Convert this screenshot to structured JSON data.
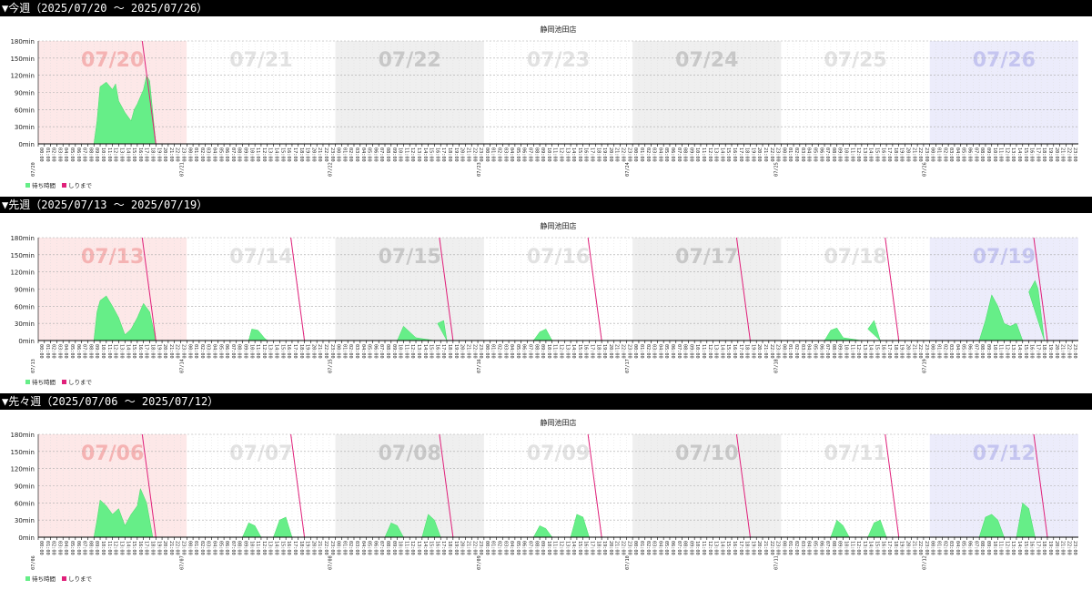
{
  "weeks": [
    {
      "header": "▼今週（2025/07/20 ～ 2025/07/26）"
    },
    {
      "header": "▼先週（2025/07/13 ～ 2025/07/19）"
    },
    {
      "header": "▼先々週（2025/07/06 ～ 2025/07/12）"
    }
  ],
  "chart_data": [
    {
      "type": "area",
      "title": "静岡池田店",
      "y_ticks": [
        "0min",
        "30min",
        "60min",
        "90min",
        "120min",
        "150min",
        "180min"
      ],
      "ylim": [
        0,
        180
      ],
      "grid": true,
      "legend_position": "bottom-left",
      "legend": [
        "待ち時間",
        "しりまで"
      ],
      "day_labels": [
        "07/20",
        "07/21",
        "07/22",
        "07/23",
        "07/24",
        "07/25",
        "07/26"
      ],
      "x_date_labels": [
        "07/20",
        "07/21",
        "07/22",
        "07/23",
        "07/24",
        "07/25",
        "07/26"
      ],
      "series": [
        {
          "name": "待ち時間",
          "color": "#66ee88",
          "points": [
            [
              0,
              9,
              0
            ],
            [
              0,
              9.5,
              40
            ],
            [
              0,
              10,
              100
            ],
            [
              0,
              11,
              108
            ],
            [
              0,
              12,
              95
            ],
            [
              0,
              12.5,
              105
            ],
            [
              0,
              13,
              75
            ],
            [
              0,
              14,
              55
            ],
            [
              0,
              15,
              40
            ],
            [
              0,
              15.5,
              60
            ],
            [
              0,
              16,
              70
            ],
            [
              0,
              17,
              95
            ],
            [
              0,
              17.5,
              120
            ],
            [
              0,
              18,
              110
            ],
            [
              0,
              19,
              0
            ]
          ]
        },
        {
          "name": "しりまで",
          "color": "#e0207a",
          "lines": [
            [
              0,
              16.8,
              180,
              19,
              0
            ]
          ]
        }
      ]
    },
    {
      "type": "area",
      "title": "静岡池田店",
      "y_ticks": [
        "0min",
        "30min",
        "60min",
        "90min",
        "120min",
        "150min",
        "180min"
      ],
      "ylim": [
        0,
        180
      ],
      "grid": true,
      "legend_position": "bottom-left",
      "legend": [
        "待ち時間",
        "しりまで"
      ],
      "day_labels": [
        "07/13",
        "07/14",
        "07/15",
        "07/16",
        "07/17",
        "07/18",
        "07/19"
      ],
      "x_date_labels": [
        "07/13",
        "07/14",
        "07/15",
        "07/16",
        "07/17",
        "07/18",
        "07/19"
      ],
      "series": [
        {
          "name": "待ち時間",
          "color": "#66ee88",
          "points": [
            [
              0,
              9,
              0
            ],
            [
              0,
              9.5,
              50
            ],
            [
              0,
              10,
              70
            ],
            [
              0,
              11,
              78
            ],
            [
              0,
              12,
              60
            ],
            [
              0,
              13,
              40
            ],
            [
              0,
              14,
              10
            ],
            [
              0,
              15,
              20
            ],
            [
              0,
              16,
              40
            ],
            [
              0,
              17,
              65
            ],
            [
              0,
              18,
              50
            ],
            [
              0,
              19,
              0
            ],
            [
              1,
              10,
              0
            ],
            [
              1,
              10.5,
              20
            ],
            [
              1,
              11.5,
              18
            ],
            [
              1,
              12.5,
              5
            ],
            [
              1,
              13,
              0
            ],
            [
              2,
              10,
              0
            ],
            [
              2,
              11,
              25
            ],
            [
              2,
              12,
              15
            ],
            [
              2,
              13,
              5
            ],
            [
              2,
              16,
              0
            ],
            [
              2,
              16.5,
              30
            ],
            [
              2,
              17.5,
              35
            ],
            [
              2,
              18,
              0
            ],
            [
              3,
              8,
              0
            ],
            [
              3,
              9,
              15
            ],
            [
              3,
              10,
              20
            ],
            [
              3,
              11,
              0
            ],
            [
              5,
              7,
              0
            ],
            [
              5,
              8,
              18
            ],
            [
              5,
              9,
              22
            ],
            [
              5,
              10,
              5
            ],
            [
              5,
              13,
              0
            ],
            [
              5,
              14,
              20
            ],
            [
              5,
              15,
              35
            ],
            [
              5,
              16,
              0
            ],
            [
              6,
              8,
              0
            ],
            [
              6,
              9,
              35
            ],
            [
              6,
              10,
              80
            ],
            [
              6,
              11,
              60
            ],
            [
              6,
              12,
              30
            ],
            [
              6,
              13,
              25
            ],
            [
              6,
              14,
              30
            ],
            [
              6,
              15,
              0
            ],
            [
              6,
              16,
              85
            ],
            [
              6,
              17,
              105
            ],
            [
              6,
              17.5,
              90
            ],
            [
              6,
              18.5,
              0
            ]
          ]
        },
        {
          "name": "しりまで",
          "color": "#e0207a",
          "lines": [
            [
              0,
              16.8,
              180,
              19,
              0
            ],
            [
              1,
              16.8,
              180,
              19,
              0
            ],
            [
              2,
              16.8,
              180,
              19,
              0
            ],
            [
              3,
              16.8,
              180,
              19,
              0
            ],
            [
              4,
              16.8,
              180,
              19,
              0
            ],
            [
              5,
              16.8,
              180,
              19,
              0
            ],
            [
              6,
              16.8,
              180,
              19,
              0
            ]
          ]
        }
      ]
    },
    {
      "type": "area",
      "title": "静岡池田店",
      "y_ticks": [
        "0min",
        "30min",
        "60min",
        "90min",
        "120min",
        "150min",
        "180min"
      ],
      "ylim": [
        0,
        180
      ],
      "grid": true,
      "legend_position": "bottom-left",
      "legend": [
        "待ち時間",
        "しりまで"
      ],
      "day_labels": [
        "07/06",
        "07/07",
        "07/08",
        "07/09",
        "07/10",
        "07/11",
        "07/12"
      ],
      "x_date_labels": [
        "07/06",
        "07/07",
        "07/08",
        "07/09",
        "07/10",
        "07/11",
        "07/12"
      ],
      "series": [
        {
          "name": "待ち時間",
          "color": "#66ee88",
          "points": [
            [
              0,
              9,
              0
            ],
            [
              0,
              9.5,
              30
            ],
            [
              0,
              10,
              65
            ],
            [
              0,
              11,
              55
            ],
            [
              0,
              12,
              40
            ],
            [
              0,
              13,
              50
            ],
            [
              0,
              14,
              20
            ],
            [
              0,
              15,
              40
            ],
            [
              0,
              16,
              55
            ],
            [
              0,
              16.5,
              85
            ],
            [
              0,
              17.5,
              60
            ],
            [
              0,
              18.5,
              0
            ],
            [
              1,
              9,
              0
            ],
            [
              1,
              10,
              25
            ],
            [
              1,
              11,
              20
            ],
            [
              1,
              12,
              0
            ],
            [
              1,
              14,
              0
            ],
            [
              1,
              15,
              30
            ],
            [
              1,
              16,
              35
            ],
            [
              1,
              17,
              0
            ],
            [
              2,
              8,
              0
            ],
            [
              2,
              9,
              25
            ],
            [
              2,
              10,
              20
            ],
            [
              2,
              11,
              0
            ],
            [
              2,
              14,
              0
            ],
            [
              2,
              15,
              40
            ],
            [
              2,
              16,
              30
            ],
            [
              2,
              17,
              0
            ],
            [
              3,
              8,
              0
            ],
            [
              3,
              9,
              20
            ],
            [
              3,
              10,
              15
            ],
            [
              3,
              11,
              0
            ],
            [
              3,
              14,
              0
            ],
            [
              3,
              15,
              40
            ],
            [
              3,
              16,
              35
            ],
            [
              3,
              17,
              0
            ],
            [
              5,
              8,
              0
            ],
            [
              5,
              9,
              30
            ],
            [
              5,
              10,
              20
            ],
            [
              5,
              11,
              0
            ],
            [
              5,
              14,
              0
            ],
            [
              5,
              15,
              25
            ],
            [
              5,
              16,
              30
            ],
            [
              5,
              17,
              0
            ],
            [
              6,
              8,
              0
            ],
            [
              6,
              9,
              35
            ],
            [
              6,
              10,
              40
            ],
            [
              6,
              11,
              30
            ],
            [
              6,
              12,
              0
            ],
            [
              6,
              14,
              0
            ],
            [
              6,
              15,
              60
            ],
            [
              6,
              16,
              50
            ],
            [
              6,
              17,
              0
            ]
          ]
        },
        {
          "name": "しりまで",
          "color": "#e0207a",
          "lines": [
            [
              0,
              16.8,
              180,
              19,
              0
            ],
            [
              1,
              16.8,
              180,
              19,
              0
            ],
            [
              2,
              16.8,
              180,
              19,
              0
            ],
            [
              3,
              16.8,
              180,
              19,
              0
            ],
            [
              4,
              16.8,
              180,
              19,
              0
            ],
            [
              5,
              16.8,
              180,
              19,
              0
            ],
            [
              6,
              16.8,
              180,
              19,
              0
            ]
          ]
        }
      ]
    }
  ]
}
